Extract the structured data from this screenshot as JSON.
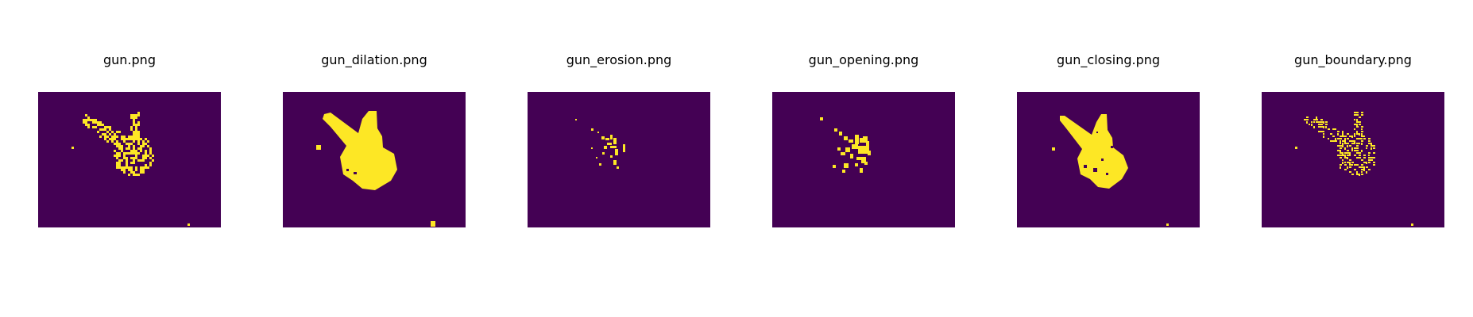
{
  "figure": {
    "background": "#ffffff",
    "colormap": {
      "background_color": "#440154",
      "foreground_color": "#fde725",
      "name": "viridis"
    },
    "panels": [
      {
        "title": "gun.png",
        "variant": "original"
      },
      {
        "title": "gun_dilation.png",
        "variant": "dilation"
      },
      {
        "title": "gun_erosion.png",
        "variant": "erosion"
      },
      {
        "title": "gun_opening.png",
        "variant": "opening"
      },
      {
        "title": "gun_closing.png",
        "variant": "closing"
      },
      {
        "title": "gun_boundary.png",
        "variant": "boundary"
      }
    ]
  }
}
